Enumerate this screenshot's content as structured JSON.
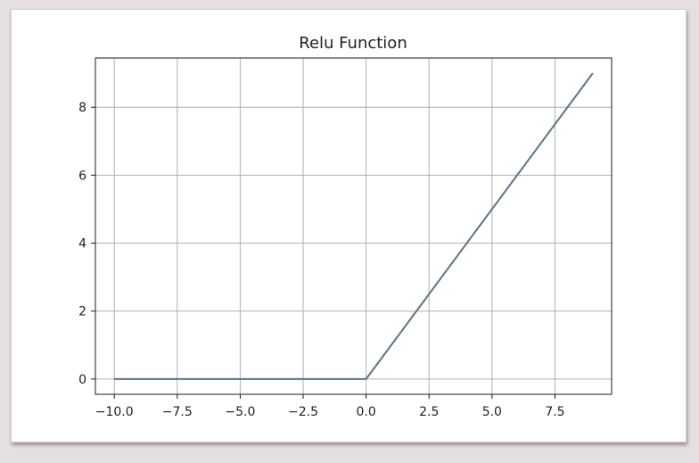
{
  "chart_data": {
    "type": "line",
    "title": "Relu Function",
    "xlabel": "",
    "ylabel": "",
    "xlim": [
      -10.75,
      9.75
    ],
    "ylim": [
      -0.45,
      9.45
    ],
    "grid": true,
    "xticks": [
      -10.0,
      -7.5,
      -5.0,
      -2.5,
      0.0,
      2.5,
      5.0,
      7.5
    ],
    "xtick_labels": [
      "−10.0",
      "−7.5",
      "−5.0",
      "−2.5",
      "0.0",
      "2.5",
      "5.0",
      "7.5"
    ],
    "yticks": [
      0,
      2,
      4,
      6,
      8
    ],
    "ytick_labels": [
      "0",
      "2",
      "4",
      "6",
      "8"
    ],
    "series": [
      {
        "color": "#5f7285",
        "x": [
          -10,
          0,
          9
        ],
        "y": [
          0,
          0,
          9
        ]
      }
    ]
  }
}
